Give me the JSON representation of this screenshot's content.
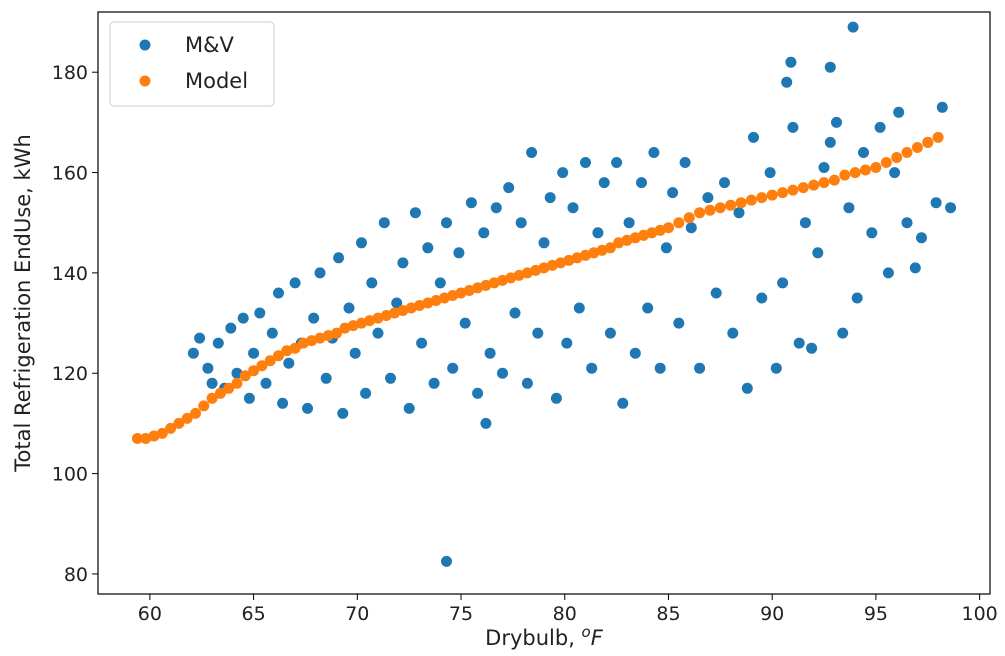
{
  "chart_data": {
    "type": "scatter",
    "xlabel": "Drybulb, ",
    "xlabel_unit_sup": "o",
    "xlabel_unit": "F",
    "ylabel": "Total Refrigeration EndUse, kWh",
    "xlim": [
      57.5,
      100.5
    ],
    "ylim": [
      76,
      192
    ],
    "xticks": [
      "60",
      "65",
      "70",
      "75",
      "80",
      "85",
      "90",
      "95",
      "100"
    ],
    "yticks": [
      "80",
      "100",
      "120",
      "140",
      "160",
      "180"
    ],
    "grid": false,
    "legend": "top-left",
    "series": [
      {
        "name": "M&V",
        "color": "#1f77b4",
        "points": [
          [
            62.1,
            124
          ],
          [
            62.4,
            127
          ],
          [
            62.8,
            121
          ],
          [
            63.0,
            118
          ],
          [
            63.3,
            126
          ],
          [
            63.6,
            117
          ],
          [
            63.9,
            129
          ],
          [
            64.2,
            120
          ],
          [
            64.5,
            131
          ],
          [
            64.8,
            115
          ],
          [
            65.0,
            124
          ],
          [
            65.3,
            132
          ],
          [
            65.6,
            118
          ],
          [
            65.9,
            128
          ],
          [
            66.2,
            136
          ],
          [
            66.4,
            114
          ],
          [
            66.7,
            122
          ],
          [
            67.0,
            138
          ],
          [
            67.3,
            126
          ],
          [
            67.6,
            113
          ],
          [
            67.9,
            131
          ],
          [
            68.2,
            140
          ],
          [
            68.5,
            119
          ],
          [
            68.8,
            127
          ],
          [
            69.1,
            143
          ],
          [
            69.3,
            112
          ],
          [
            69.6,
            133
          ],
          [
            69.9,
            124
          ],
          [
            70.2,
            146
          ],
          [
            70.4,
            116
          ],
          [
            70.7,
            138
          ],
          [
            71.0,
            128
          ],
          [
            71.3,
            150
          ],
          [
            71.6,
            119
          ],
          [
            71.9,
            134
          ],
          [
            72.2,
            142
          ],
          [
            72.5,
            113
          ],
          [
            72.8,
            152
          ],
          [
            73.1,
            126
          ],
          [
            73.4,
            145
          ],
          [
            73.7,
            118
          ],
          [
            74.0,
            138
          ],
          [
            74.3,
            150
          ],
          [
            74.3,
            82.5
          ],
          [
            74.6,
            121
          ],
          [
            74.9,
            144
          ],
          [
            75.2,
            130
          ],
          [
            75.5,
            154
          ],
          [
            75.8,
            116
          ],
          [
            76.1,
            148
          ],
          [
            76.2,
            110
          ],
          [
            76.4,
            124
          ],
          [
            76.7,
            153
          ],
          [
            77.0,
            120
          ],
          [
            77.3,
            157
          ],
          [
            77.6,
            132
          ],
          [
            77.9,
            150
          ],
          [
            78.2,
            118
          ],
          [
            78.4,
            164
          ],
          [
            78.7,
            128
          ],
          [
            79.0,
            146
          ],
          [
            79.3,
            155
          ],
          [
            79.6,
            115
          ],
          [
            79.9,
            160
          ],
          [
            80.1,
            126
          ],
          [
            80.4,
            153
          ],
          [
            80.7,
            133
          ],
          [
            81.0,
            162
          ],
          [
            81.3,
            121
          ],
          [
            81.6,
            148
          ],
          [
            81.9,
            158
          ],
          [
            82.2,
            128
          ],
          [
            82.5,
            162
          ],
          [
            82.8,
            114
          ],
          [
            83.1,
            150
          ],
          [
            83.4,
            124
          ],
          [
            83.7,
            158
          ],
          [
            84.0,
            133
          ],
          [
            84.3,
            164
          ],
          [
            84.6,
            121
          ],
          [
            84.9,
            145
          ],
          [
            85.2,
            156
          ],
          [
            85.5,
            130
          ],
          [
            85.8,
            162
          ],
          [
            86.1,
            149
          ],
          [
            86.5,
            121
          ],
          [
            86.9,
            155
          ],
          [
            87.3,
            136
          ],
          [
            87.7,
            158
          ],
          [
            88.1,
            128
          ],
          [
            88.4,
            152
          ],
          [
            88.8,
            117
          ],
          [
            89.1,
            167
          ],
          [
            89.5,
            135
          ],
          [
            89.9,
            160
          ],
          [
            90.2,
            121
          ],
          [
            90.5,
            138
          ],
          [
            90.7,
            178
          ],
          [
            90.9,
            182
          ],
          [
            91.0,
            169
          ],
          [
            91.3,
            126
          ],
          [
            91.6,
            150
          ],
          [
            91.9,
            125
          ],
          [
            92.2,
            144
          ],
          [
            92.5,
            161
          ],
          [
            92.8,
            181
          ],
          [
            92.8,
            166
          ],
          [
            93.1,
            170
          ],
          [
            93.4,
            128
          ],
          [
            93.7,
            153
          ],
          [
            93.9,
            189
          ],
          [
            94.1,
            135
          ],
          [
            94.4,
            164
          ],
          [
            94.8,
            148
          ],
          [
            95.2,
            169
          ],
          [
            95.6,
            140
          ],
          [
            95.9,
            160
          ],
          [
            96.1,
            172
          ],
          [
            96.5,
            150
          ],
          [
            96.9,
            141
          ],
          [
            97.2,
            147
          ],
          [
            97.5,
            166
          ],
          [
            97.9,
            154
          ],
          [
            98.2,
            173
          ],
          [
            98.6,
            153
          ]
        ]
      },
      {
        "name": "Model",
        "color": "#ff7f0e",
        "points": [
          [
            59.4,
            107
          ],
          [
            59.8,
            107
          ],
          [
            60.2,
            107.5
          ],
          [
            60.6,
            108
          ],
          [
            61.0,
            109
          ],
          [
            61.4,
            110
          ],
          [
            61.8,
            111
          ],
          [
            62.2,
            112
          ],
          [
            62.6,
            113.5
          ],
          [
            63.0,
            115
          ],
          [
            63.4,
            116
          ],
          [
            63.8,
            117
          ],
          [
            64.2,
            118
          ],
          [
            64.6,
            119.5
          ],
          [
            65.0,
            120.5
          ],
          [
            65.4,
            121.5
          ],
          [
            65.8,
            122.5
          ],
          [
            66.2,
            123.5
          ],
          [
            66.6,
            124.5
          ],
          [
            67.0,
            125
          ],
          [
            67.4,
            126
          ],
          [
            67.8,
            126.5
          ],
          [
            68.2,
            127
          ],
          [
            68.6,
            127.5
          ],
          [
            69.0,
            128
          ],
          [
            69.4,
            129
          ],
          [
            69.8,
            129.5
          ],
          [
            70.2,
            130
          ],
          [
            70.6,
            130.5
          ],
          [
            71.0,
            131
          ],
          [
            71.4,
            131.5
          ],
          [
            71.8,
            132
          ],
          [
            72.2,
            132.5
          ],
          [
            72.6,
            133
          ],
          [
            73.0,
            133.5
          ],
          [
            73.4,
            134
          ],
          [
            73.8,
            134.5
          ],
          [
            74.2,
            135
          ],
          [
            74.6,
            135.5
          ],
          [
            75.0,
            136
          ],
          [
            75.4,
            136.5
          ],
          [
            75.8,
            137
          ],
          [
            76.2,
            137.5
          ],
          [
            76.6,
            138
          ],
          [
            77.0,
            138.5
          ],
          [
            77.4,
            139
          ],
          [
            77.8,
            139.5
          ],
          [
            78.2,
            140
          ],
          [
            78.6,
            140.5
          ],
          [
            79.0,
            141
          ],
          [
            79.4,
            141.5
          ],
          [
            79.8,
            142
          ],
          [
            80.2,
            142.5
          ],
          [
            80.6,
            143
          ],
          [
            81.0,
            143.5
          ],
          [
            81.4,
            144
          ],
          [
            81.8,
            144.5
          ],
          [
            82.2,
            145
          ],
          [
            82.6,
            146
          ],
          [
            83.0,
            146.5
          ],
          [
            83.4,
            147
          ],
          [
            83.8,
            147.5
          ],
          [
            84.2,
            148
          ],
          [
            84.6,
            148.5
          ],
          [
            85.0,
            149
          ],
          [
            85.5,
            150
          ],
          [
            86.0,
            151
          ],
          [
            86.5,
            152
          ],
          [
            87.0,
            152.5
          ],
          [
            87.5,
            153
          ],
          [
            88.0,
            153.5
          ],
          [
            88.5,
            154
          ],
          [
            89.0,
            154.5
          ],
          [
            89.5,
            155
          ],
          [
            90.0,
            155.5
          ],
          [
            90.5,
            156
          ],
          [
            91.0,
            156.5
          ],
          [
            91.5,
            157
          ],
          [
            92.0,
            157.5
          ],
          [
            92.5,
            158
          ],
          [
            93.0,
            158.5
          ],
          [
            93.5,
            159.5
          ],
          [
            94.0,
            160
          ],
          [
            94.5,
            160.5
          ],
          [
            95.0,
            161
          ],
          [
            95.5,
            162
          ],
          [
            96.0,
            163
          ],
          [
            96.5,
            164
          ],
          [
            97.0,
            165
          ],
          [
            97.5,
            166
          ],
          [
            98.0,
            167
          ]
        ]
      }
    ]
  }
}
